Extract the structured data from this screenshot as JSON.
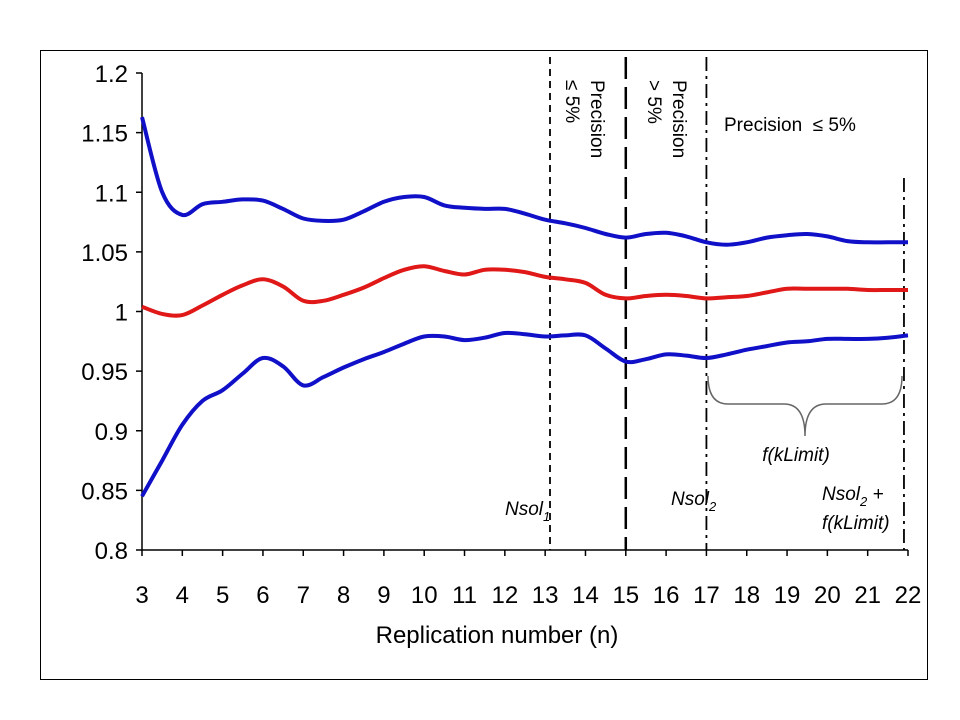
{
  "chart_data": {
    "type": "line",
    "title": "",
    "xlabel": "Replication number (n)",
    "ylabel": "",
    "xlim": [
      3,
      22
    ],
    "ylim": [
      0.8,
      1.2
    ],
    "xticks": [
      "3",
      "4",
      "5",
      "6",
      "7",
      "8",
      "9",
      "10",
      "11",
      "12",
      "13",
      "14",
      "15",
      "16",
      "17",
      "18",
      "19",
      "20",
      "21",
      "22"
    ],
    "yticks": [
      "0.8",
      "0.85",
      "0.9",
      "0.95",
      "1",
      "1.05",
      "1.1",
      "1.15",
      "1.2"
    ],
    "grid": false,
    "series": [
      {
        "color": "#1010c8",
        "x": [
          3,
          3.5,
          4,
          4.5,
          5,
          5.5,
          6,
          6.5,
          7,
          7.5,
          8,
          8.5,
          9,
          9.5,
          10,
          10.5,
          11,
          11.5,
          12,
          12.5,
          13,
          13.5,
          14,
          14.5,
          15,
          15.5,
          16,
          16.5,
          17,
          17.5,
          18,
          18.5,
          19,
          19.5,
          20,
          20.5,
          21,
          21.5,
          22
        ],
        "values": [
          1.163,
          1.1,
          1.081,
          1.09,
          1.092,
          1.094,
          1.093,
          1.086,
          1.078,
          1.076,
          1.077,
          1.084,
          1.092,
          1.096,
          1.096,
          1.089,
          1.087,
          1.086,
          1.086,
          1.082,
          1.077,
          1.074,
          1.07,
          1.065,
          1.062,
          1.065,
          1.066,
          1.063,
          1.058,
          1.056,
          1.058,
          1.062,
          1.064,
          1.065,
          1.063,
          1.059,
          1.058,
          1.058,
          1.058
        ]
      },
      {
        "color": "#e01818",
        "x": [
          3,
          3.5,
          4,
          4.5,
          5,
          5.5,
          6,
          6.5,
          7,
          7.5,
          8,
          8.5,
          9,
          9.5,
          10,
          10.5,
          11,
          11.5,
          12,
          12.5,
          13,
          13.5,
          14,
          14.5,
          15,
          15.5,
          16,
          16.5,
          17,
          17.5,
          18,
          18.5,
          19,
          19.5,
          20,
          20.5,
          21,
          21.5,
          22
        ],
        "values": [
          1.004,
          0.998,
          0.997,
          1.005,
          1.014,
          1.022,
          1.027,
          1.021,
          1.009,
          1.009,
          1.014,
          1.02,
          1.028,
          1.035,
          1.038,
          1.034,
          1.031,
          1.035,
          1.035,
          1.033,
          1.029,
          1.027,
          1.024,
          1.014,
          1.011,
          1.013,
          1.014,
          1.013,
          1.011,
          1.012,
          1.013,
          1.016,
          1.019,
          1.019,
          1.019,
          1.019,
          1.018,
          1.018,
          1.018
        ]
      },
      {
        "color": "#1010c8",
        "x": [
          3,
          3.5,
          4,
          4.5,
          5,
          5.5,
          6,
          6.5,
          7,
          7.5,
          8,
          8.5,
          9,
          9.5,
          10,
          10.5,
          11,
          11.5,
          12,
          12.5,
          13,
          13.5,
          14,
          14.5,
          15,
          15.5,
          16,
          16.5,
          17,
          17.5,
          18,
          18.5,
          19,
          19.5,
          20,
          20.5,
          21,
          21.5,
          22
        ],
        "values": [
          0.845,
          0.875,
          0.905,
          0.925,
          0.934,
          0.948,
          0.961,
          0.954,
          0.938,
          0.945,
          0.953,
          0.96,
          0.966,
          0.973,
          0.979,
          0.979,
          0.976,
          0.978,
          0.982,
          0.981,
          0.979,
          0.98,
          0.98,
          0.969,
          0.958,
          0.96,
          0.964,
          0.963,
          0.961,
          0.964,
          0.968,
          0.971,
          0.974,
          0.975,
          0.977,
          0.977,
          0.977,
          0.978,
          0.98
        ]
      }
    ],
    "vlines": [
      {
        "x": 13.12,
        "style": "dashed"
      },
      {
        "x": 15,
        "style": "longdash"
      },
      {
        "x": 17,
        "style": "dashdot"
      },
      {
        "x": 21.9,
        "style": "dashdot"
      }
    ],
    "annotations": {
      "precision_a": [
        "Precision",
        "≤ 5%"
      ],
      "precision_b": [
        "Precision",
        "> 5%"
      ],
      "precision_c": "Precision  ≤ 5%",
      "nsol1": {
        "base": "Nsol",
        "sub": "1"
      },
      "nsol2": {
        "base": "Nsol",
        "sub": "2"
      },
      "nsol2_plus": {
        "base": "Nsol",
        "sub": "2",
        "tail": " +"
      },
      "fklimit_line2": "f(kLimit)",
      "brace_label": "f(kLimit)"
    }
  }
}
